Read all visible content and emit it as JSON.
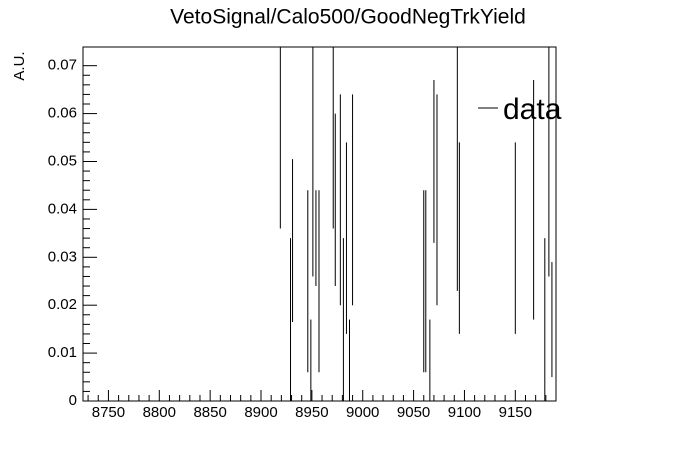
{
  "chart_data": {
    "type": "errorbar",
    "title": "VetoSignal/Calo500/GoodNegTrkYield",
    "y_label": "A.U.",
    "legend": "data",
    "legend_position": "upper right",
    "color": "#000000",
    "x": [
      8919,
      8929,
      8931,
      8946,
      8949,
      8951,
      8954,
      8957,
      8971,
      8973,
      8978,
      8981,
      8984,
      8987,
      8990,
      9060,
      9062,
      9066,
      9070,
      9073,
      9093,
      9095,
      9150,
      9168,
      9179,
      9183,
      9186
    ],
    "values": [
      0.067,
      0.017,
      0.0335,
      0.025,
      0.0085,
      0.05,
      0.034,
      0.025,
      0.067,
      0.042,
      0.042,
      0.017,
      0.034,
      0.0085,
      0.042,
      0.025,
      0.025,
      0.0085,
      0.05,
      0.042,
      0.05,
      0.034,
      0.034,
      0.042,
      0.017,
      0.05,
      0.017
    ],
    "errors": [
      0.031,
      0.017,
      0.017,
      0.019,
      0.0085,
      0.024,
      0.01,
      0.019,
      0.031,
      0.018,
      0.022,
      0.017,
      0.02,
      0.0085,
      0.022,
      0.019,
      0.019,
      0.0085,
      0.017,
      0.022,
      0.027,
      0.02,
      0.02,
      0.025,
      0.017,
      0.024,
      0.012
    ],
    "xlim": [
      8725,
      9190
    ],
    "ylim": [
      0,
      0.0739
    ],
    "xticks": [
      8750,
      8800,
      8850,
      8900,
      8950,
      9000,
      9050,
      9100,
      9150
    ],
    "yticks": [
      0,
      0.01,
      0.02,
      0.03,
      0.04,
      0.05,
      0.06,
      0.07
    ]
  }
}
